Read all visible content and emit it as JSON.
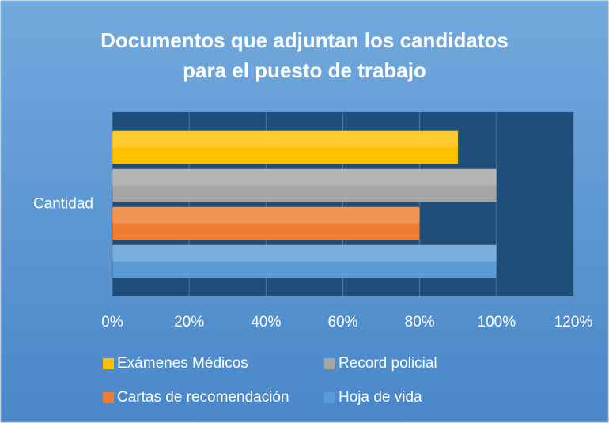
{
  "chart_data": {
    "type": "hbar",
    "title": [
      "Documentos que adjuntan los candidatos",
      "para el puesto de trabajo"
    ],
    "categories": [
      "Cantidad"
    ],
    "series": [
      {
        "name": "Exámenes Médicos",
        "color": "#ffc000",
        "values": [
          90
        ]
      },
      {
        "name": "Record policial",
        "color": "#a5a5a5",
        "values": [
          100
        ]
      },
      {
        "name": "Cartas de recomendación",
        "color": "#ed7d31",
        "values": [
          80
        ]
      },
      {
        "name": "Hoja de vida",
        "color": "#5b9bd5",
        "values": [
          100
        ]
      }
    ],
    "xlim": [
      0,
      120
    ],
    "xticks": [
      {
        "value": 0,
        "label": "0%"
      },
      {
        "value": 20,
        "label": "20%"
      },
      {
        "value": 40,
        "label": "40%"
      },
      {
        "value": 60,
        "label": "60%"
      },
      {
        "value": 80,
        "label": "80%"
      },
      {
        "value": 100,
        "label": "100%"
      },
      {
        "value": 120,
        "label": "120%"
      }
    ],
    "grid": true,
    "legend": "bottom"
  }
}
